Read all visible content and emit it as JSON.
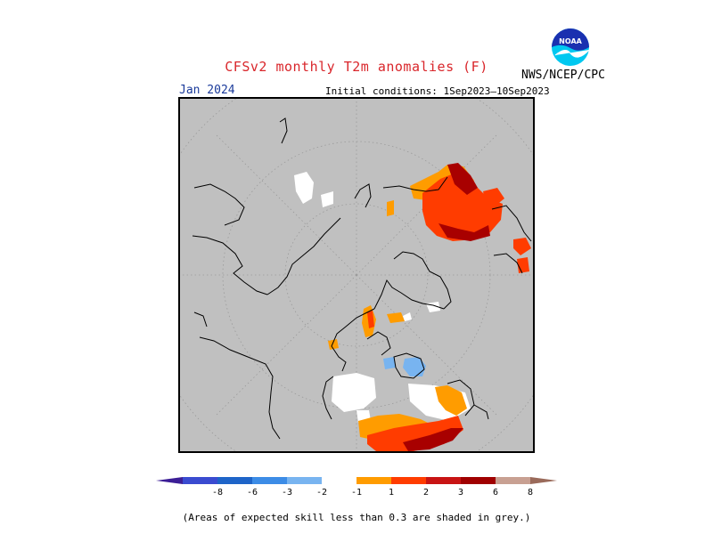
{
  "header": {
    "title": "CFSv2 monthly T2m anomalies (F)",
    "target_month": "Jan 2024",
    "initial_conditions": "Initial conditions: 1Sep2023—10Sep2023",
    "agency": "NWS/NCEP/CPC",
    "logo_text": "NOAA"
  },
  "map": {
    "projection": "north polar stereographic",
    "background_meaning": "grey = expected skill less than 0.3",
    "colors": {
      "grey": "#c0c0c0",
      "neutral": "#ffffff",
      "pos_1": "#ff9c00",
      "pos_2": "#ff3c00",
      "pos_3": "#cc1111",
      "pos_6": "#a80000",
      "cold_1": "#78b4f0"
    }
  },
  "colorbar": {
    "labels": [
      "-8",
      "-6",
      "-3",
      "-2",
      "-1",
      "1",
      "2",
      "3",
      "6",
      "8"
    ],
    "colors": [
      "#3c1e96",
      "#3a4bd0",
      "#1e64c8",
      "#3c8ce6",
      "#78b4f0",
      "#ffffff",
      "#ff9c00",
      "#ff3c00",
      "#c81414",
      "#a00000",
      "#c8a092",
      "#9a6a5a"
    ]
  },
  "footer": {
    "note": "(Areas of expected skill less than 0.3 are shaded in grey.)"
  }
}
